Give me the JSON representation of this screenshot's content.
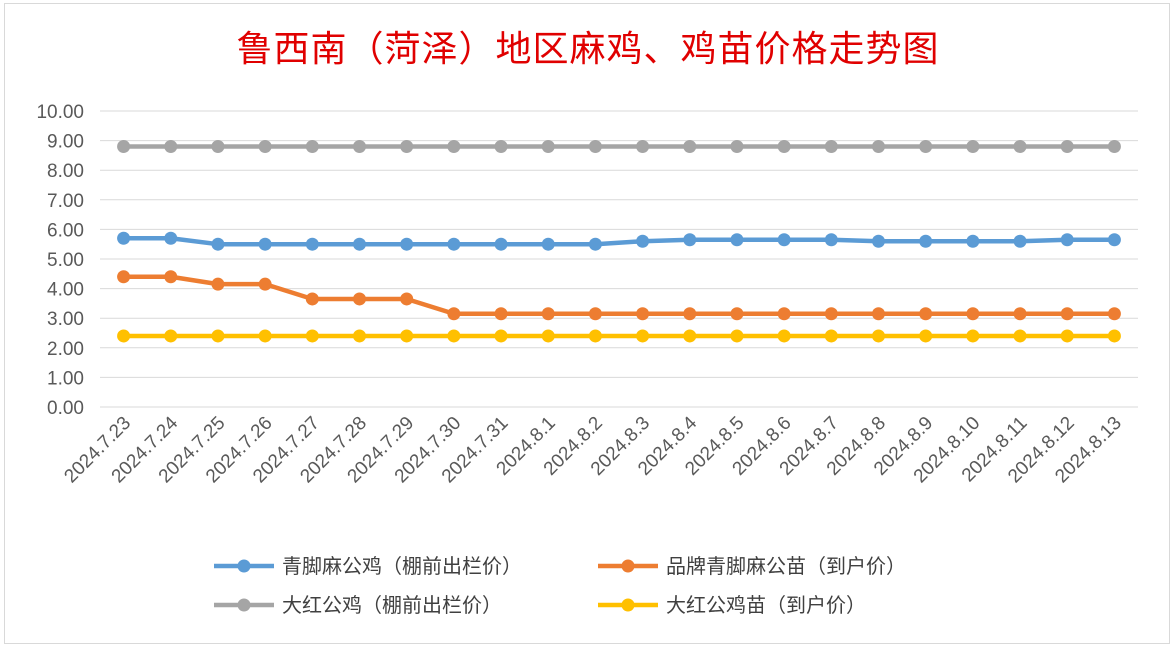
{
  "chart_data": {
    "type": "line",
    "title": "鲁西南（菏泽）地区麻鸡、鸡苗价格走势图",
    "xlabel": "",
    "ylabel": "",
    "ylim": [
      0,
      10
    ],
    "yticks": [
      "0.00",
      "1.00",
      "2.00",
      "3.00",
      "4.00",
      "5.00",
      "6.00",
      "7.00",
      "8.00",
      "9.00",
      "10.00"
    ],
    "grid": true,
    "legend_position": "bottom",
    "categories": [
      "2024.7.23",
      "2024.7.24",
      "2024.7.25",
      "2024.7.26",
      "2024.7.27",
      "2024.7.28",
      "2024.7.29",
      "2024.7.30",
      "2024.7.31",
      "2024.8.1",
      "2024.8.2",
      "2024.8.3",
      "2024.8.4",
      "2024.8.5",
      "2024.8.6",
      "2024.8.7",
      "2024.8.8",
      "2024.8.9",
      "2024.8.10",
      "2024.8.11",
      "2024.8.12",
      "2024.8.13"
    ],
    "series": [
      {
        "name": "青脚麻公鸡（棚前出栏价）",
        "color": "#5b9bd5",
        "values": [
          5.7,
          5.7,
          5.5,
          5.5,
          5.5,
          5.5,
          5.5,
          5.5,
          5.5,
          5.5,
          5.5,
          5.6,
          5.65,
          5.65,
          5.65,
          5.65,
          5.6,
          5.6,
          5.6,
          5.6,
          5.65,
          5.65
        ]
      },
      {
        "name": "品牌青脚麻公苗（到户价）",
        "color": "#ed7d31",
        "values": [
          4.4,
          4.4,
          4.15,
          4.15,
          3.65,
          3.65,
          3.65,
          3.15,
          3.15,
          3.15,
          3.15,
          3.15,
          3.15,
          3.15,
          3.15,
          3.15,
          3.15,
          3.15,
          3.15,
          3.15,
          3.15,
          3.15
        ]
      },
      {
        "name": "大红公鸡（棚前出栏价）",
        "color": "#a5a5a5",
        "values": [
          8.8,
          8.8,
          8.8,
          8.8,
          8.8,
          8.8,
          8.8,
          8.8,
          8.8,
          8.8,
          8.8,
          8.8,
          8.8,
          8.8,
          8.8,
          8.8,
          8.8,
          8.8,
          8.8,
          8.8,
          8.8,
          8.8
        ]
      },
      {
        "name": "大红公鸡苗（到户价）",
        "color": "#ffc000",
        "values": [
          2.4,
          2.4,
          2.4,
          2.4,
          2.4,
          2.4,
          2.4,
          2.4,
          2.4,
          2.4,
          2.4,
          2.4,
          2.4,
          2.4,
          2.4,
          2.4,
          2.4,
          2.4,
          2.4,
          2.4,
          2.4,
          2.4
        ]
      }
    ]
  }
}
